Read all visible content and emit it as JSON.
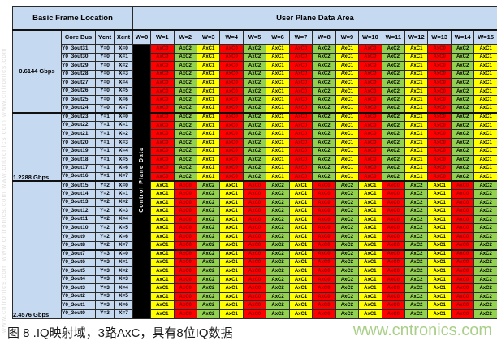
{
  "header": {
    "basic_frame_location": "Basic Frame Location",
    "user_plane_data_area": "User Plane Data Area",
    "core_bus": "Core Bus",
    "ycnt": "Ycnt",
    "xcnt": "Xcnt",
    "w_columns": [
      "W=0",
      "W=1",
      "W=2",
      "W=3",
      "W=4",
      "W=5",
      "W=6",
      "W=7",
      "W=8",
      "W=9",
      "W=10",
      "W=11",
      "W=12",
      "W=13",
      "W=14",
      "W=15"
    ]
  },
  "control_plane_label": "Control Plane Data",
  "rates": [
    {
      "label": "0.6144 Gbps"
    },
    {
      "label": "1.2288 Gbps"
    },
    {
      "label": "2.4576 Gbps"
    }
  ],
  "patterns": {
    "A": [
      "AxC0",
      "AxC2",
      "AxC1",
      "AxC0",
      "AxC2",
      "AxC1",
      "AxC0",
      "AxC2",
      "AxC1",
      "AxC0",
      "AxC2",
      "AxC1",
      "AxC0",
      "AxC2",
      "AxC1"
    ],
    "B": [
      "AxC1",
      "AxC0",
      "AxC2",
      "AxC1",
      "AxC0",
      "AxC2",
      "AxC1",
      "AxC0",
      "AxC2",
      "AxC1",
      "AxC0",
      "AxC2",
      "AxC1",
      "AxC0",
      "AxC2"
    ]
  },
  "axc_colors": {
    "AxC0": {
      "bg": "#ff0000",
      "fg": "#8f0000"
    },
    "AxC1": {
      "bg": "#ffff00",
      "fg": "#000000"
    },
    "AxC2": {
      "bg": "#92d050",
      "fg": "#000000"
    }
  },
  "rows": [
    {
      "label": "Y0_3out31",
      "ycnt": "Y=0",
      "xcnt": "X=0"
    },
    {
      "label": "Y0_3out30",
      "ycnt": "Y=0",
      "xcnt": "X=1"
    },
    {
      "label": "Y0_3out29",
      "ycnt": "Y=0",
      "xcnt": "X=2"
    },
    {
      "label": "Y0_3out28",
      "ycnt": "Y=0",
      "xcnt": "X=3"
    },
    {
      "label": "Y0_3out27",
      "ycnt": "Y=0",
      "xcnt": "X=4"
    },
    {
      "label": "Y0_3out26",
      "ycnt": "Y=0",
      "xcnt": "X=5"
    },
    {
      "label": "Y0_3out25",
      "ycnt": "Y=0",
      "xcnt": "X=6"
    },
    {
      "label": "Y0_3out24",
      "ycnt": "Y=0",
      "xcnt": "X=7"
    },
    {
      "label": "Y0_3out23",
      "ycnt": "Y=1",
      "xcnt": "X=0"
    },
    {
      "label": "Y0_3out22",
      "ycnt": "Y=1",
      "xcnt": "X=1"
    },
    {
      "label": "Y0_3out21",
      "ycnt": "Y=1",
      "xcnt": "X=2"
    },
    {
      "label": "Y0_3out20",
      "ycnt": "Y=1",
      "xcnt": "X=3"
    },
    {
      "label": "Y0_3out19",
      "ycnt": "Y=1",
      "xcnt": "X=4"
    },
    {
      "label": "Y0_3out18",
      "ycnt": "Y=1",
      "xcnt": "X=5"
    },
    {
      "label": "Y0_3out17",
      "ycnt": "Y=1",
      "xcnt": "X=6"
    },
    {
      "label": "Y0_3out16",
      "ycnt": "Y=1",
      "xcnt": "X=7"
    },
    {
      "label": "Y0_3out15",
      "ycnt": "Y=2",
      "xcnt": "X=0"
    },
    {
      "label": "Y0_3out14",
      "ycnt": "Y=2",
      "xcnt": "X=1"
    },
    {
      "label": "Y0_3out13",
      "ycnt": "Y=2",
      "xcnt": "X=2"
    },
    {
      "label": "Y0_3out12",
      "ycnt": "Y=2",
      "xcnt": "X=3"
    },
    {
      "label": "Y0_3out11",
      "ycnt": "Y=2",
      "xcnt": "X=4"
    },
    {
      "label": "Y0_3out10",
      "ycnt": "Y=2",
      "xcnt": "X=5"
    },
    {
      "label": "Y0_3out9",
      "ycnt": "Y=2",
      "xcnt": "X=6"
    },
    {
      "label": "Y0_3out8",
      "ycnt": "Y=2",
      "xcnt": "X=7"
    },
    {
      "label": "Y0_3out7",
      "ycnt": "Y=3",
      "xcnt": "X=0"
    },
    {
      "label": "Y0_3out6",
      "ycnt": "Y=3",
      "xcnt": "X=1"
    },
    {
      "label": "Y0_3out5",
      "ycnt": "Y=3",
      "xcnt": "X=2"
    },
    {
      "label": "Y0_3out4",
      "ycnt": "Y=3",
      "xcnt": "X=3"
    },
    {
      "label": "Y0_3out3",
      "ycnt": "Y=3",
      "xcnt": "X=4"
    },
    {
      "label": "Y0_3out2",
      "ycnt": "Y=3",
      "xcnt": "X=5"
    },
    {
      "label": "Y0_3out1",
      "ycnt": "Y=3",
      "xcnt": "X=6"
    },
    {
      "label": "Y0_3out0",
      "ycnt": "Y=3",
      "xcnt": "X=7"
    }
  ],
  "caption": "图 8 .IQ映射域，3路AxC，具有8位IQ数据",
  "watermark": {
    "url": "www.cntronics.com",
    "side_text": "www.cntronics.com"
  },
  "colors": {
    "header_bg": "#c5d9f1",
    "control_bg": "#000000",
    "control_fg": "#ffffff",
    "border": "#2a2a2a",
    "watermark_green": "#a9cf88"
  }
}
